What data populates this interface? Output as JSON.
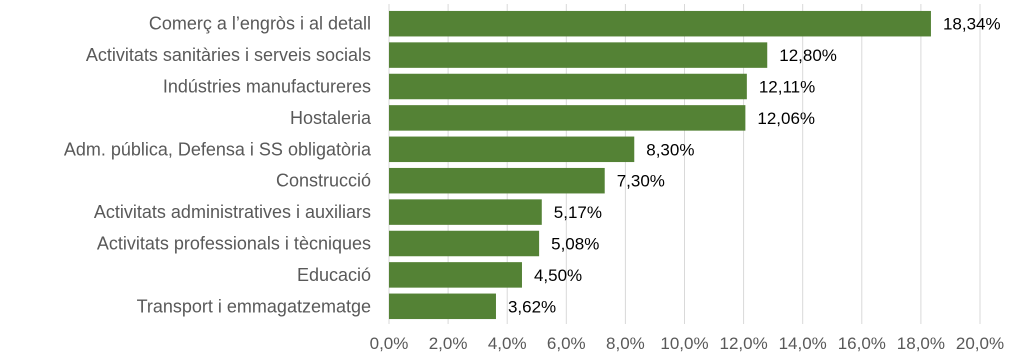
{
  "chart_data": {
    "type": "bar",
    "orientation": "horizontal",
    "categories": [
      "Comerç a l’engròs i al detall",
      "Activitats sanitàries i serveis socials",
      "Indústries manufactureres",
      "Hostaleria",
      "Adm. pública, Defensa i SS obligatòria",
      "Construcció",
      "Activitats administratives i auxiliars",
      "Activitats professionals i tècniques",
      "Educació",
      "Transport i emmagatzematge"
    ],
    "values": [
      18.34,
      12.8,
      12.11,
      12.06,
      8.3,
      7.3,
      5.17,
      5.08,
      4.5,
      3.62
    ],
    "value_labels": [
      "18,34%",
      "12,80%",
      "12,11%",
      "12,06%",
      "8,30%",
      "7,30%",
      "5,17%",
      "5,08%",
      "4,50%",
      "3,62%"
    ],
    "xlim": [
      0,
      20
    ],
    "x_ticks": [
      "0,0%",
      "2,0%",
      "4,0%",
      "6,0%",
      "8,0%",
      "10,0%",
      "12,0%",
      "14,0%",
      "16,0%",
      "18,0%",
      "20,0%"
    ],
    "grid": "vertical",
    "bar_color": "#548235",
    "title": "",
    "xlabel": "",
    "ylabel": ""
  }
}
